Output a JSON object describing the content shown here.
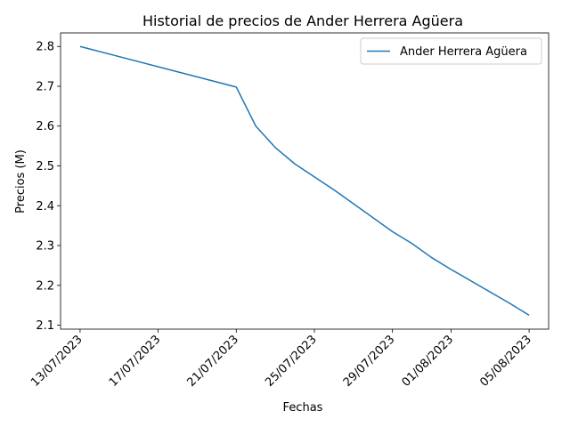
{
  "chart_data": {
    "type": "line",
    "title": "Historial de precios de Ander Herrera Agüera",
    "xlabel": "Fechas",
    "ylabel": "Precios (M)",
    "x_ticks": [
      "13/07/2023",
      "17/07/2023",
      "21/07/2023",
      "25/07/2023",
      "29/07/2023",
      "01/08/2023",
      "05/08/2023"
    ],
    "y_ticks": [
      "2.1",
      "2.2",
      "2.3",
      "2.4",
      "2.5",
      "2.6",
      "2.7",
      "2.8"
    ],
    "ylim": [
      2.09,
      2.834
    ],
    "xlim": [
      "12/07/2023",
      "06/08/2023"
    ],
    "grid": false,
    "legend": "top-right",
    "series": [
      {
        "name": "Ander Herrera Agüera",
        "color": "#1f77b4",
        "points": [
          {
            "x": "13/07/2023",
            "y": 2.8
          },
          {
            "x": "21/07/2023",
            "y": 2.698
          },
          {
            "x": "22/07/2023",
            "y": 2.6
          },
          {
            "x": "23/07/2023",
            "y": 2.546
          },
          {
            "x": "24/07/2023",
            "y": 2.505
          },
          {
            "x": "26/07/2023",
            "y": 2.44
          },
          {
            "x": "29/07/2023",
            "y": 2.335
          },
          {
            "x": "30/07/2023",
            "y": 2.305
          },
          {
            "x": "31/07/2023",
            "y": 2.27
          },
          {
            "x": "01/08/2023",
            "y": 2.24
          },
          {
            "x": "04/08/2023",
            "y": 2.155
          },
          {
            "x": "05/08/2023",
            "y": 2.125
          }
        ]
      }
    ]
  }
}
